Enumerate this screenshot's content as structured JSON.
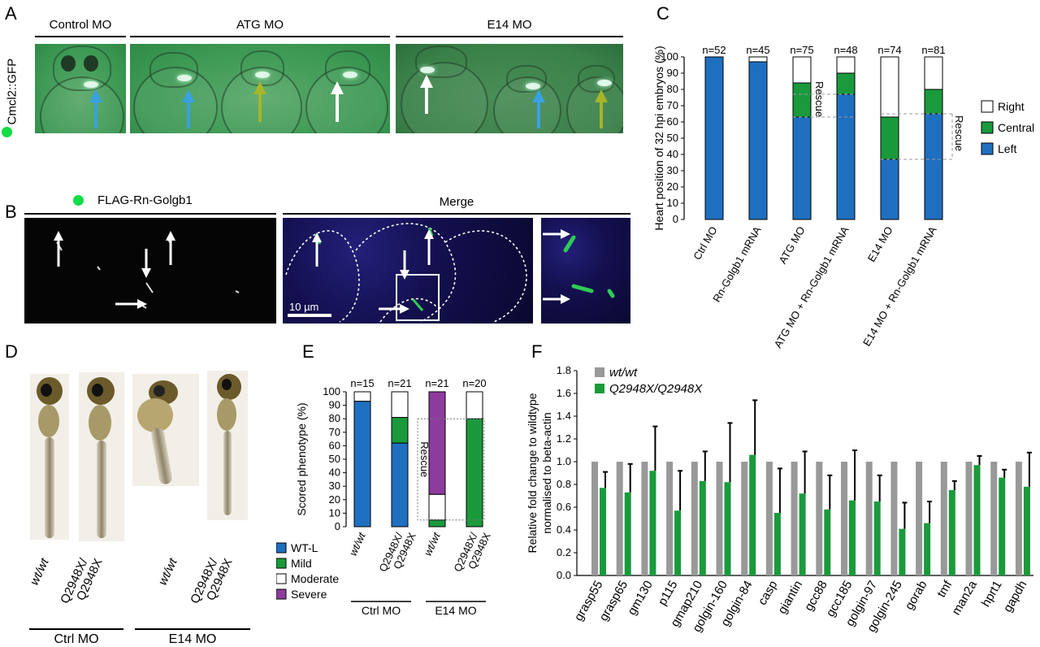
{
  "panels": {
    "A": "A",
    "B": "B",
    "C": "C",
    "D": "D",
    "E": "E",
    "F": "F"
  },
  "panelA": {
    "headers": [
      "Control MO",
      "ATG MO",
      "E14 MO"
    ],
    "side_label": "Cmcl2::GFP"
  },
  "panelB": {
    "header_left": "FLAG-Rn-Golgb1",
    "header_right": "Merge",
    "scale_bar": "10 µm"
  },
  "panelD": {
    "labels": [
      "wt/wt",
      "Q2948X/ Q2948X",
      "wt/wt",
      "Q2948X/ Q2948X"
    ],
    "groups": [
      "Ctrl MO",
      "E14 MO"
    ]
  },
  "colors": {
    "blue": "#1f6fc0",
    "green": "#1a9a3c",
    "purple": "#8e3b9e",
    "grey": "#999999",
    "white": "#ffffff"
  },
  "chart_data": [
    {
      "panel": "C",
      "type": "bar",
      "stacked": true,
      "ylabel": "Heart position of 32 hpi embryos (%)",
      "ylim": [
        0,
        100
      ],
      "yticks": [
        0,
        10,
        20,
        30,
        40,
        50,
        60,
        70,
        80,
        90,
        100
      ],
      "categories": [
        "Ctrl MO",
        "Rn-Golgb1 mRNA",
        "ATG MO",
        "ATG MO + Rn-Golgb1 mRNA",
        "E14 MO",
        "E14 MO + Rn-Golgb1 mRNA"
      ],
      "n": [
        "n=52",
        "n=45",
        "n=75",
        "n=48",
        "n=74",
        "n=81"
      ],
      "series": [
        {
          "name": "Left",
          "values": [
            100,
            97,
            63,
            77,
            37,
            65
          ]
        },
        {
          "name": "Central",
          "values": [
            0,
            0,
            21,
            13,
            26,
            15
          ]
        },
        {
          "name": "Right",
          "values": [
            0,
            3,
            16,
            10,
            37,
            20
          ]
        }
      ],
      "legend": [
        "Right",
        "Central",
        "Left"
      ],
      "legend_position": "right",
      "annotations": [
        "Rescue",
        "Rescue"
      ]
    },
    {
      "panel": "E",
      "type": "bar",
      "stacked": true,
      "ylabel": "Scored phenotype (%)",
      "ylim": [
        0,
        100
      ],
      "yticks": [
        0,
        10,
        20,
        30,
        40,
        50,
        60,
        70,
        80,
        90,
        100
      ],
      "categories": [
        "wt/wt",
        "Q2948X/ Q2948X",
        "wt/wt",
        "Q2948X/ Q2948X"
      ],
      "groups": [
        "Ctrl MO",
        "E14 MO"
      ],
      "n": [
        "n=15",
        "n=21",
        "n=21",
        "n=20"
      ],
      "series": [
        {
          "name": "WT-L",
          "values": [
            93,
            62,
            0,
            0
          ]
        },
        {
          "name": "Mild",
          "values": [
            0,
            19,
            5,
            80
          ]
        },
        {
          "name": "Moderate",
          "values": [
            7,
            19,
            19,
            20
          ]
        },
        {
          "name": "Severe",
          "values": [
            0,
            0,
            76,
            0
          ]
        }
      ],
      "legend": [
        "WT-L",
        "Mild",
        "Moderate",
        "Severe"
      ],
      "legend_position": "bottom-left",
      "annotations": [
        "Rescue"
      ]
    },
    {
      "panel": "F",
      "type": "bar",
      "ylabel": "Relative fold change to wildtype normalised to beta-actin",
      "ylim": [
        0,
        1.8
      ],
      "yticks": [
        0,
        0.2,
        0.4,
        0.6,
        0.8,
        1.0,
        1.2,
        1.4,
        1.6,
        1.8
      ],
      "categories": [
        "grasp55",
        "grasp65",
        "gm130",
        "p115",
        "gmap210",
        "golgin-160",
        "golgin-84",
        "casp",
        "giantin",
        "gcc88",
        "gcc185",
        "golgin-97",
        "golgin-245",
        "gorab",
        "tmf",
        "man2a",
        "hprt1",
        "gapdh"
      ],
      "series": [
        {
          "name": "wt/wt",
          "values": [
            1,
            1,
            1,
            1,
            1,
            1,
            1,
            1,
            1,
            1,
            1,
            1,
            1,
            1,
            1,
            1,
            1,
            1
          ]
        },
        {
          "name": "Q2948X/Q2948X",
          "values": [
            0.77,
            0.73,
            0.92,
            0.57,
            0.83,
            0.82,
            1.06,
            0.55,
            0.72,
            0.58,
            0.66,
            0.65,
            0.41,
            0.46,
            0.75,
            0.97,
            0.86,
            0.78
          ],
          "errors": [
            0.14,
            0.25,
            0.39,
            0.35,
            0.26,
            0.52,
            0.48,
            0.39,
            0.37,
            0.3,
            0.44,
            0.23,
            0.23,
            0.19,
            0.08,
            0.08,
            0.07,
            0.3
          ]
        }
      ],
      "legend_position": "top-left"
    }
  ]
}
